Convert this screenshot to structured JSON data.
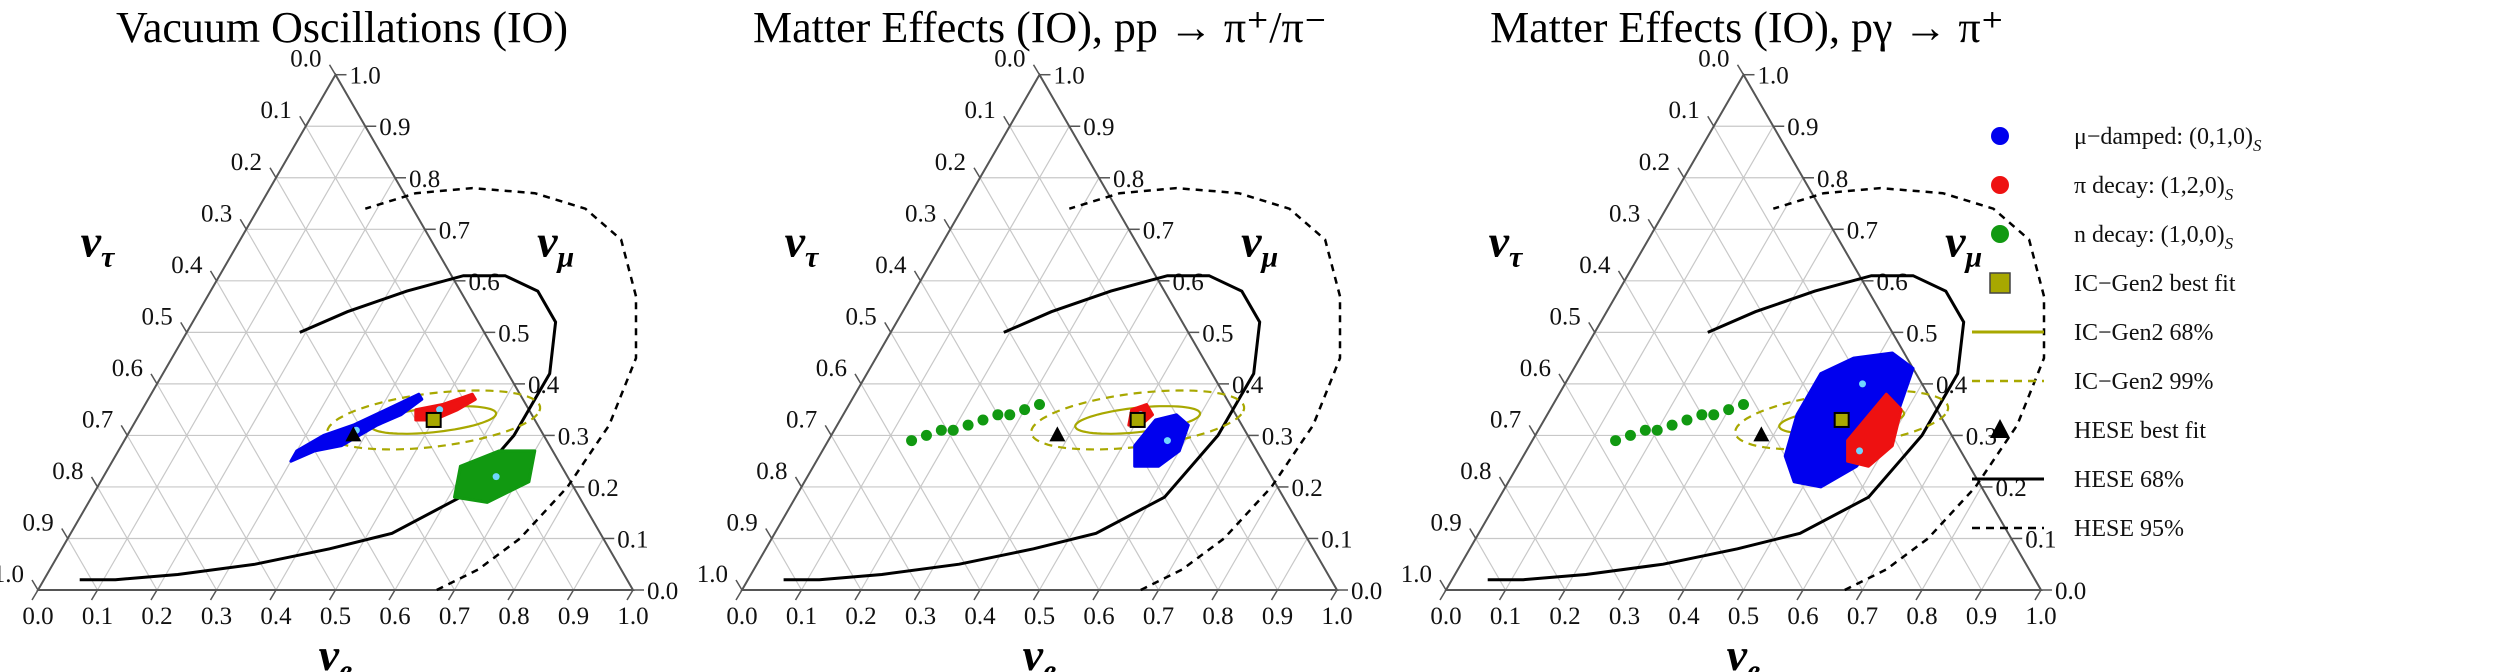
{
  "chart_data": [
    {
      "type": "ternary",
      "title": "Vacuum Oscillations (IO)",
      "axes": {
        "bottom": {
          "symbol": "ν",
          "sub": "e",
          "ticks": [
            "0.0",
            "0.1",
            "0.2",
            "0.3",
            "0.4",
            "0.5",
            "0.6",
            "0.7",
            "0.8",
            "0.9",
            "1.0"
          ]
        },
        "right": {
          "symbol": "ν",
          "sub": "μ",
          "ticks": [
            "0.0",
            "0.1",
            "0.2",
            "0.3",
            "0.4",
            "0.5",
            "0.6",
            "0.7",
            "0.8",
            "0.9",
            "1.0"
          ]
        },
        "left": {
          "symbol": "ν",
          "sub": "τ",
          "ticks": [
            "0.0",
            "0.1",
            "0.2",
            "0.3",
            "0.4",
            "0.5",
            "0.6",
            "0.7",
            "0.8",
            "0.9",
            "1.0"
          ]
        }
      },
      "series": [
        {
          "name": "μ-damped",
          "color": "#0000ee",
          "region": [
            [
              0.3,
              0.25
            ],
            [
              0.33,
              0.27
            ],
            [
              0.37,
              0.28
            ],
            [
              0.41,
              0.32
            ],
            [
              0.44,
              0.34
            ],
            [
              0.46,
              0.37
            ],
            [
              0.45,
              0.38
            ],
            [
              0.41,
              0.35
            ],
            [
              0.37,
              0.32
            ],
            [
              0.33,
              0.3
            ],
            [
              0.3,
              0.27
            ]
          ],
          "center": [
            0.38,
            0.31
          ]
        },
        {
          "name": "π decay",
          "color": "#ee1111",
          "region": [
            [
              0.46,
              0.35
            ],
            [
              0.5,
              0.36
            ],
            [
              0.54,
              0.38
            ],
            [
              0.55,
              0.37
            ],
            [
              0.53,
              0.35
            ],
            [
              0.5,
              0.33
            ],
            [
              0.47,
              0.33
            ]
          ],
          "center": [
            0.5,
            0.35
          ]
        },
        {
          "name": "n decay",
          "color": "#119911",
          "region": [
            [
              0.59,
              0.24
            ],
            [
              0.64,
              0.27
            ],
            [
              0.7,
              0.27
            ],
            [
              0.72,
              0.21
            ],
            [
              0.67,
              0.17
            ],
            [
              0.61,
              0.18
            ]
          ],
          "center": [
            0.66,
            0.22
          ]
        }
      ]
    },
    {
      "type": "ternary",
      "title": "Matter Effects (IO), pp → π⁺/π⁻",
      "axes": {
        "bottom": {
          "symbol": "ν",
          "sub": "e",
          "ticks": [
            "0.0",
            "0.1",
            "0.2",
            "0.3",
            "0.4",
            "0.5",
            "0.6",
            "0.7",
            "0.8",
            "0.9",
            "1.0"
          ]
        },
        "right": {
          "symbol": "ν",
          "sub": "μ",
          "ticks": [
            "0.0",
            "0.1",
            "0.2",
            "0.3",
            "0.4",
            "0.5",
            "0.6",
            "0.7",
            "0.8",
            "0.9",
            "1.0"
          ]
        },
        "left": {
          "symbol": "ν",
          "sub": "τ",
          "ticks": [
            "0.0",
            "0.1",
            "0.2",
            "0.3",
            "0.4",
            "0.5",
            "0.6",
            "0.7",
            "0.8",
            "0.9",
            "1.0"
          ]
        }
      },
      "series": [
        {
          "name": "μ-damped",
          "color": "#0000ee",
          "region": [
            [
              0.53,
              0.33
            ],
            [
              0.56,
              0.34
            ],
            [
              0.59,
              0.32
            ],
            [
              0.6,
              0.27
            ],
            [
              0.58,
              0.24
            ],
            [
              0.54,
              0.24
            ],
            [
              0.52,
              0.28
            ]
          ],
          "center": [
            0.57,
            0.29
          ]
        },
        {
          "name": "π decay",
          "color": "#ee1111",
          "region": [
            [
              0.48,
              0.35
            ],
            [
              0.5,
              0.36
            ],
            [
              0.52,
              0.34
            ],
            [
              0.51,
              0.32
            ],
            [
              0.49,
              0.32
            ]
          ],
          "center": [
            0.5,
            0.34
          ]
        },
        {
          "name": "n decay",
          "color": "#119911",
          "line": [
            [
              0.14,
              0.29
            ],
            [
              0.16,
              0.3
            ],
            [
              0.18,
              0.31
            ],
            [
              0.2,
              0.31
            ],
            [
              0.22,
              0.32
            ],
            [
              0.24,
              0.33
            ],
            [
              0.26,
              0.34
            ],
            [
              0.28,
              0.34
            ],
            [
              0.3,
              0.35
            ],
            [
              0.32,
              0.36
            ]
          ]
        }
      ]
    },
    {
      "type": "ternary",
      "title": "Matter Effects (IO), pγ → π⁺",
      "axes": {
        "bottom": {
          "symbol": "ν",
          "sub": "e",
          "ticks": [
            "0.0",
            "0.1",
            "0.2",
            "0.3",
            "0.4",
            "0.5",
            "0.6",
            "0.7",
            "0.8",
            "0.9",
            "1.0"
          ]
        },
        "right": {
          "symbol": "ν",
          "sub": "μ",
          "ticks": [
            "0.0",
            "0.1",
            "0.2",
            "0.3",
            "0.4",
            "0.5",
            "0.6",
            "0.7",
            "0.8",
            "0.9",
            "1.0"
          ]
        },
        "left": {
          "symbol": "ν",
          "sub": "τ",
          "ticks": [
            "0.0",
            "0.1",
            "0.2",
            "0.3",
            "0.4",
            "0.5",
            "0.6",
            "0.7",
            "0.8",
            "0.9",
            "1.0"
          ]
        }
      },
      "series": [
        {
          "name": "μ-damped",
          "color": "#0000ee",
          "region": [
            [
              0.42,
              0.42
            ],
            [
              0.46,
              0.45
            ],
            [
              0.52,
              0.46
            ],
            [
              0.57,
              0.43
            ],
            [
              0.59,
              0.33
            ],
            [
              0.57,
              0.24
            ],
            [
              0.53,
              0.2
            ],
            [
              0.48,
              0.21
            ],
            [
              0.44,
              0.26
            ],
            [
              0.42,
              0.34
            ]
          ],
          "center": [
            0.5,
            0.4
          ]
        },
        {
          "name": "π decay",
          "color": "#ee1111",
          "region": [
            [
              0.55,
              0.38
            ],
            [
              0.59,
              0.35
            ],
            [
              0.61,
              0.28
            ],
            [
              0.59,
              0.24
            ],
            [
              0.55,
              0.25
            ],
            [
              0.53,
              0.29
            ]
          ],
          "center": [
            0.56,
            0.27
          ]
        },
        {
          "name": "n decay",
          "color": "#119911",
          "line": [
            [
              0.14,
              0.29
            ],
            [
              0.16,
              0.3
            ],
            [
              0.18,
              0.31
            ],
            [
              0.2,
              0.31
            ],
            [
              0.22,
              0.32
            ],
            [
              0.24,
              0.33
            ],
            [
              0.26,
              0.34
            ],
            [
              0.28,
              0.34
            ],
            [
              0.3,
              0.35
            ],
            [
              0.32,
              0.36
            ]
          ]
        }
      ]
    }
  ],
  "shared": {
    "icgen2_best_fit": [
      0.5,
      0.33
    ],
    "icgen2_68": {
      "center": [
        0.5,
        0.33
      ],
      "a": 0.1,
      "b": 0.025,
      "angle": 0.1
    },
    "icgen2_99": {
      "center": [
        0.5,
        0.33
      ],
      "a": 0.17,
      "b": 0.055,
      "angle": 0.1
    },
    "hese_best_fit": [
      0.38,
      0.3
    ],
    "hese_68": [
      [
        0.06,
        0.02
      ],
      [
        0.12,
        0.02
      ],
      [
        0.22,
        0.03
      ],
      [
        0.34,
        0.05
      ],
      [
        0.45,
        0.08
      ],
      [
        0.54,
        0.11
      ],
      [
        0.62,
        0.18
      ],
      [
        0.65,
        0.3
      ],
      [
        0.65,
        0.42
      ],
      [
        0.61,
        0.52
      ],
      [
        0.55,
        0.58
      ],
      [
        0.48,
        0.61
      ],
      [
        0.41,
        0.61
      ],
      [
        0.33,
        0.58
      ],
      [
        0.25,
        0.54
      ],
      [
        0.19,
        0.5
      ]
    ],
    "hese_95": [
      [
        0.67,
        0.0
      ],
      [
        0.72,
        0.04
      ],
      [
        0.76,
        0.1
      ],
      [
        0.79,
        0.2
      ],
      [
        0.8,
        0.32
      ],
      [
        0.78,
        0.45
      ],
      [
        0.72,
        0.57
      ],
      [
        0.64,
        0.68
      ],
      [
        0.55,
        0.74
      ],
      [
        0.45,
        0.77
      ],
      [
        0.34,
        0.78
      ],
      [
        0.25,
        0.77
      ],
      [
        0.18,
        0.74
      ]
    ]
  },
  "legend": {
    "items": [
      {
        "key": "mu_damped",
        "label": "μ−damped: (0,1,0)",
        "sub": "S",
        "marker": "circle",
        "color": "#0000ee"
      },
      {
        "key": "pi_decay",
        "label": "π decay: (1,2,0)",
        "sub": "S",
        "marker": "circle",
        "color": "#ee1111"
      },
      {
        "key": "n_decay",
        "label": "n decay: (1,0,0)",
        "sub": "S",
        "marker": "circle",
        "color": "#119911"
      },
      {
        "key": "icgen2_best",
        "label": "IC−Gen2 best fit",
        "sub": "",
        "marker": "square",
        "color": "#a8a800"
      },
      {
        "key": "icgen2_68",
        "label": "IC−Gen2 68%",
        "sub": "",
        "marker": "solid-line",
        "color": "#a8a800"
      },
      {
        "key": "icgen2_99",
        "label": "IC−Gen2 99%",
        "sub": "",
        "marker": "dashed-line",
        "color": "#a8a800"
      },
      {
        "key": "hese_best",
        "label": "HESE best fit",
        "sub": "",
        "marker": "triangle",
        "color": "#000000"
      },
      {
        "key": "hese_68",
        "label": "HESE 68%",
        "sub": "",
        "marker": "solid-line",
        "color": "#000000"
      },
      {
        "key": "hese_95",
        "label": "HESE 95%",
        "sub": "",
        "marker": "dashed-line",
        "color": "#000000"
      }
    ]
  }
}
